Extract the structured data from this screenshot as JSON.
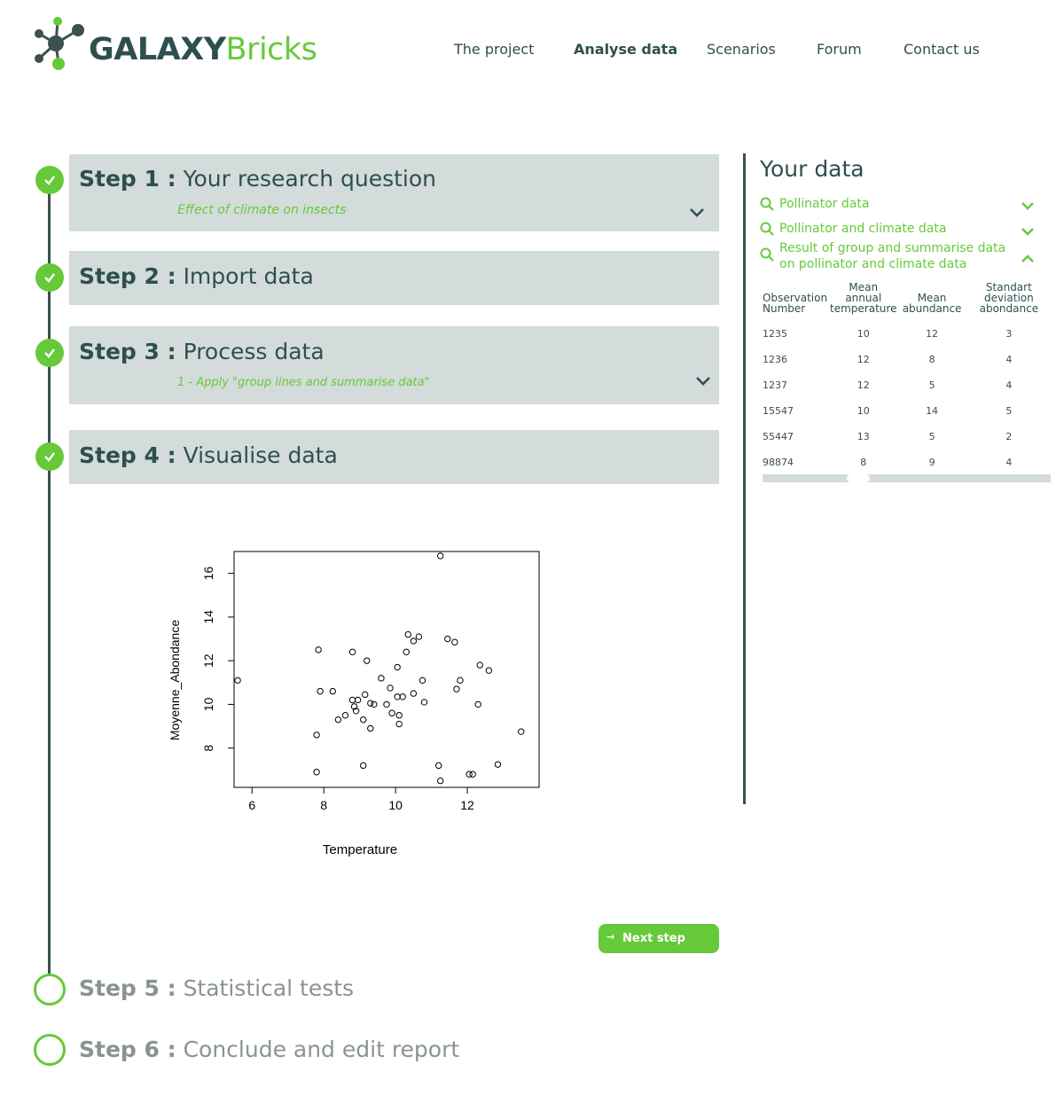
{
  "header": {
    "logo_bold": "GALAXY",
    "logo_light": "Bricks",
    "nav": [
      "The project",
      "Analyse data",
      "Scenarios",
      "Forum",
      "Contact us"
    ],
    "active_nav": "Analyse data"
  },
  "steps": [
    {
      "num": "Step 1 :",
      "title": "Your research question",
      "subtitle": "Effect of climate on insects",
      "status": "done"
    },
    {
      "num": "Step 2 :",
      "title": "Import data",
      "status": "done"
    },
    {
      "num": "Step 3 :",
      "title": "Process data",
      "subtitle": "1 - Apply \"group lines and summarise data\"",
      "status": "done"
    },
    {
      "num": "Step 4 :",
      "title": "Visualise data",
      "status": "done"
    },
    {
      "num": "Step 5 :",
      "title": "Statistical tests",
      "status": "todo"
    },
    {
      "num": "Step 6 :",
      "title": "Conclude and edit report",
      "status": "todo"
    }
  ],
  "next_step_label": "Next step",
  "colors": {
    "accent": "#66c93a",
    "dark": "#2f4f4f",
    "box": "#d3dcda"
  },
  "side_panel": {
    "title": "Your data",
    "datasets": [
      {
        "label": "Pollinator data",
        "state": "collapsed"
      },
      {
        "label": "Pollinator and climate data",
        "state": "collapsed"
      },
      {
        "label_line1": "Result of group and summarise data",
        "label_line2": "on pollinator and climate data",
        "state": "expanded"
      }
    ],
    "table": {
      "headers": [
        [
          "Observation",
          "Number"
        ],
        [
          "Mean",
          "annual",
          "temperature"
        ],
        [
          "Mean",
          "abundance"
        ],
        [
          "Standart deviation",
          "abondance"
        ]
      ],
      "rows": [
        [
          "1235",
          "10",
          "12",
          "3"
        ],
        [
          "1236",
          "12",
          "8",
          "4"
        ],
        [
          "1237",
          "12",
          "5",
          "4"
        ],
        [
          "15547",
          "10",
          "14",
          "5"
        ],
        [
          "55447",
          "13",
          "5",
          "2"
        ],
        [
          "98874",
          "8",
          "9",
          "4"
        ]
      ]
    }
  },
  "chart_data": {
    "type": "scatter",
    "xlabel": "Temperature",
    "ylabel": "Moyenne_Abondance",
    "xlim": [
      5.5,
      14.0
    ],
    "ylim": [
      6.2,
      17.0
    ],
    "xticks": [
      6,
      8,
      10,
      12
    ],
    "yticks": [
      8,
      10,
      12,
      14,
      16
    ],
    "grid": false,
    "points": [
      [
        5.6,
        11.1
      ],
      [
        7.8,
        8.6
      ],
      [
        7.8,
        6.9
      ],
      [
        7.85,
        12.5
      ],
      [
        7.9,
        10.6
      ],
      [
        8.25,
        10.6
      ],
      [
        8.4,
        9.3
      ],
      [
        8.6,
        9.5
      ],
      [
        8.8,
        12.4
      ],
      [
        8.8,
        10.2
      ],
      [
        8.85,
        9.9
      ],
      [
        8.9,
        9.7
      ],
      [
        8.95,
        10.2
      ],
      [
        9.1,
        9.3
      ],
      [
        9.1,
        7.2
      ],
      [
        9.15,
        10.45
      ],
      [
        9.2,
        12.0
      ],
      [
        9.3,
        10.05
      ],
      [
        9.3,
        8.9
      ],
      [
        9.4,
        10.0
      ],
      [
        9.6,
        11.2
      ],
      [
        9.75,
        10.0
      ],
      [
        9.85,
        10.75
      ],
      [
        9.9,
        9.6
      ],
      [
        10.05,
        11.7
      ],
      [
        10.05,
        10.35
      ],
      [
        10.1,
        9.5
      ],
      [
        10.1,
        9.1
      ],
      [
        10.2,
        10.35
      ],
      [
        10.3,
        12.4
      ],
      [
        10.35,
        13.2
      ],
      [
        10.5,
        12.9
      ],
      [
        10.5,
        10.5
      ],
      [
        10.65,
        13.1
      ],
      [
        10.75,
        11.1
      ],
      [
        10.8,
        10.1
      ],
      [
        11.2,
        7.2
      ],
      [
        11.25,
        6.5
      ],
      [
        11.25,
        16.8
      ],
      [
        11.45,
        13.0
      ],
      [
        11.65,
        12.85
      ],
      [
        11.7,
        10.7
      ],
      [
        11.8,
        11.1
      ],
      [
        12.05,
        6.8
      ],
      [
        12.15,
        6.8
      ],
      [
        12.3,
        10.0
      ],
      [
        12.35,
        11.8
      ],
      [
        12.6,
        11.55
      ],
      [
        12.85,
        7.25
      ],
      [
        13.5,
        8.75
      ]
    ]
  }
}
